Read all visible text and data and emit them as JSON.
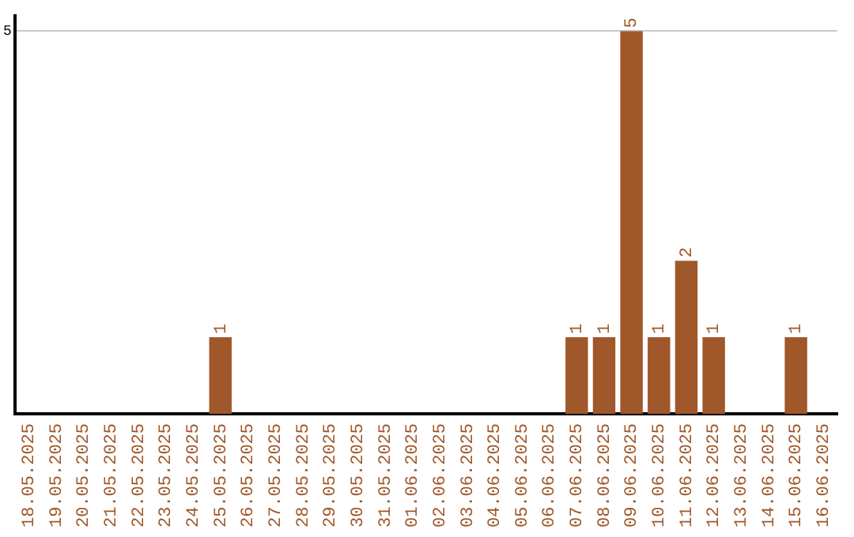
{
  "chart_data": {
    "type": "bar",
    "categories": [
      "18.05.2025",
      "19.05.2025",
      "20.05.2025",
      "21.05.2025",
      "22.05.2025",
      "23.05.2025",
      "24.05.2025",
      "25.05.2025",
      "26.05.2025",
      "27.05.2025",
      "28.05.2025",
      "29.05.2025",
      "30.05.2025",
      "31.05.2025",
      "01.06.2025",
      "02.06.2025",
      "03.06.2025",
      "04.06.2025",
      "05.06.2025",
      "06.06.2025",
      "07.06.2025",
      "08.06.2025",
      "09.06.2025",
      "10.06.2025",
      "11.06.2025",
      "12.06.2025",
      "13.06.2025",
      "14.06.2025",
      "15.06.2025",
      "16.06.2025"
    ],
    "values": [
      0,
      0,
      0,
      0,
      0,
      0,
      0,
      1,
      0,
      0,
      0,
      0,
      0,
      0,
      0,
      0,
      0,
      0,
      0,
      0,
      1,
      1,
      5,
      1,
      2,
      1,
      0,
      0,
      1,
      0
    ],
    "value_labels": [
      null,
      null,
      null,
      null,
      null,
      null,
      null,
      "1",
      null,
      null,
      null,
      null,
      null,
      null,
      null,
      null,
      null,
      null,
      null,
      null,
      "1",
      "1",
      "5",
      "1",
      "2",
      "1",
      null,
      null,
      "1",
      null
    ],
    "color": "#a0572a",
    "ylim": [
      0,
      5.2
    ],
    "yticks": [
      5
    ],
    "grid": "y",
    "legend": false
  }
}
